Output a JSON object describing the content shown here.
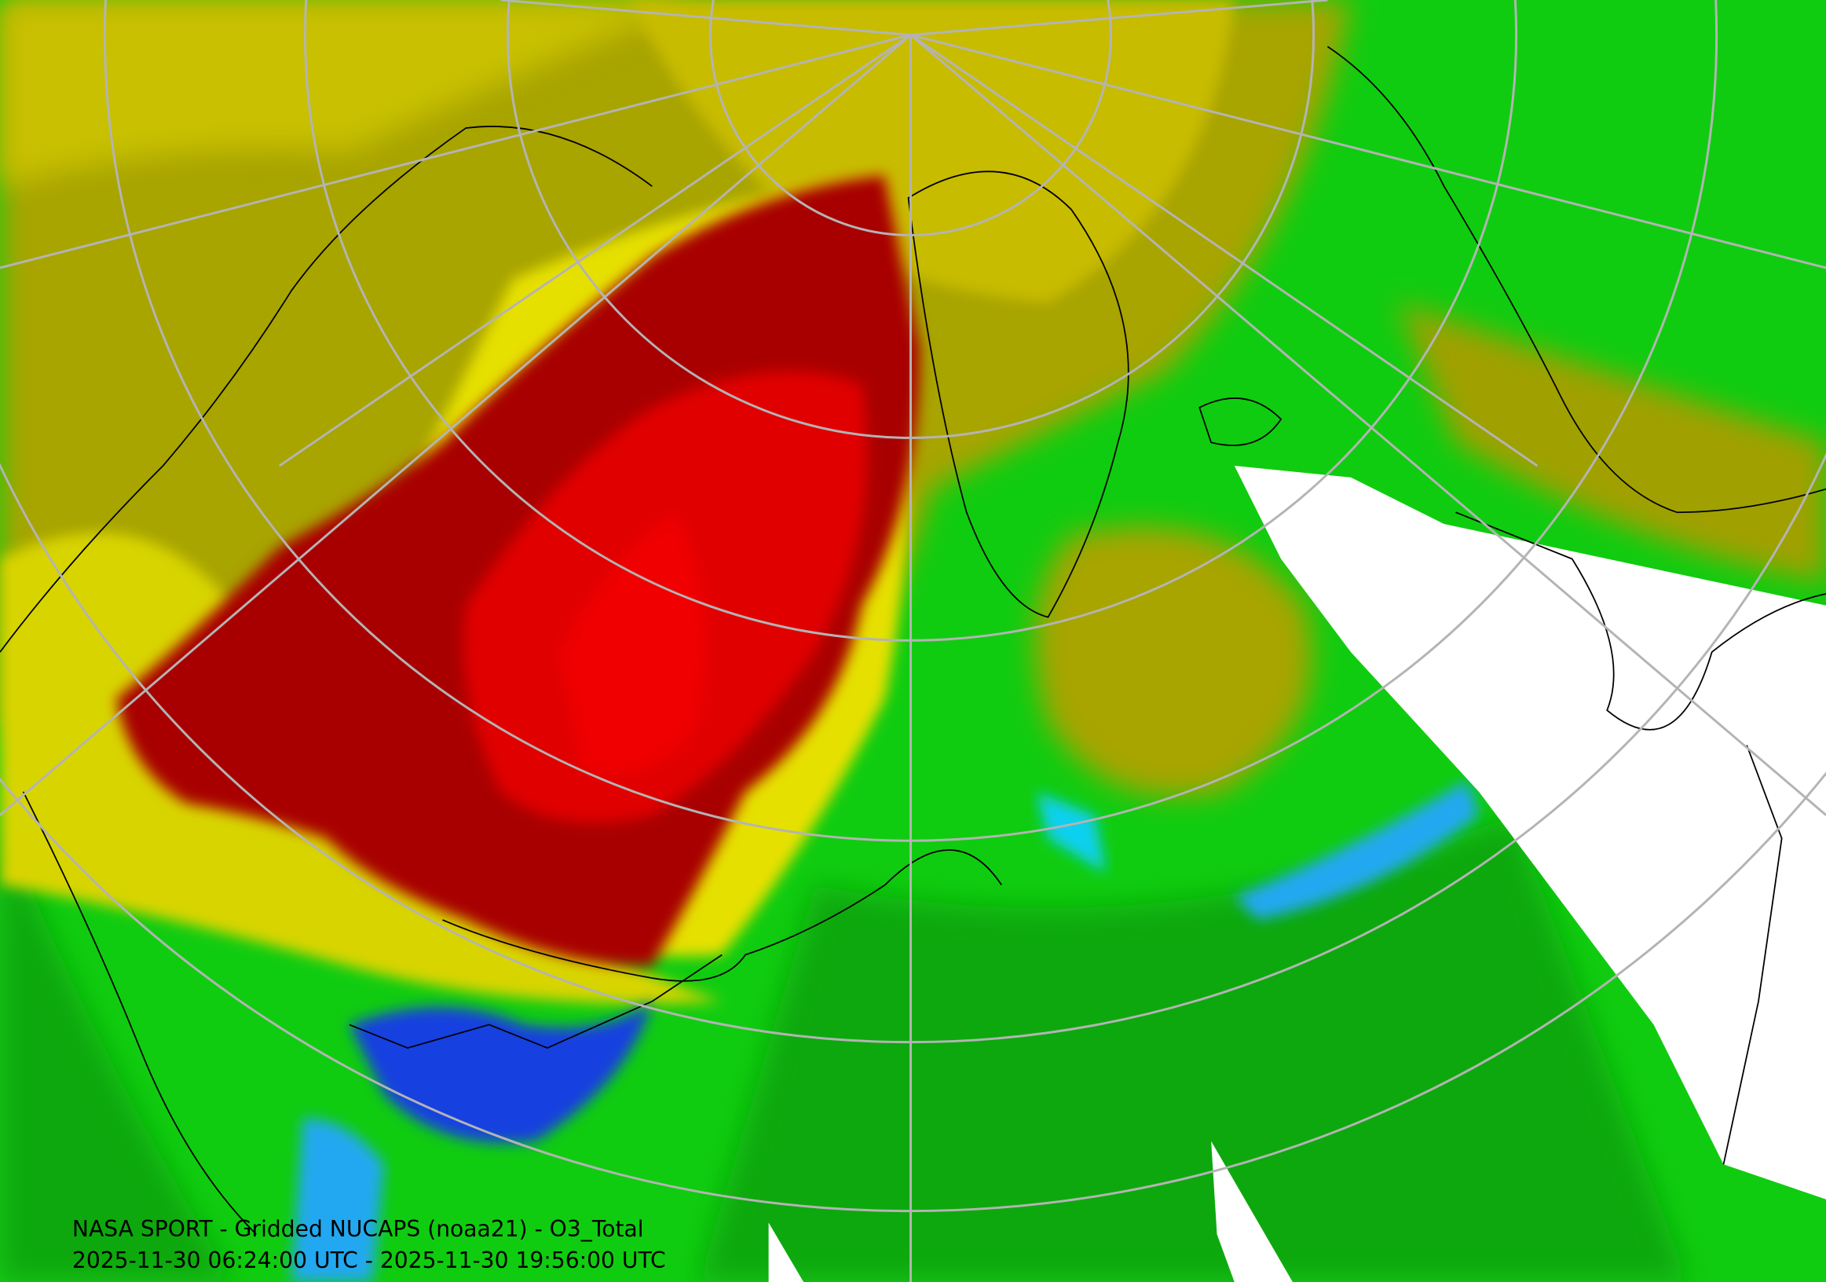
{
  "caption": {
    "line1": "NASA SPORT - Gridded NUCAPS (noaa21) - O3_Total",
    "line2": "2025-11-30 06:24:00 UTC - 2025-11-30 19:56:00 UTC"
  }
}
